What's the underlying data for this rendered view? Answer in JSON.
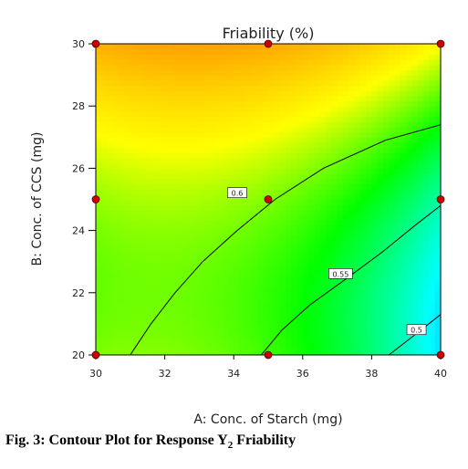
{
  "chart_data": {
    "type": "contour",
    "title": "Friability (%)",
    "xlabel": "A: Conc. of Starch (mg)",
    "ylabel": "B: Conc. of CCS (mg)",
    "xlim": [
      30,
      40
    ],
    "ylim": [
      20,
      30
    ],
    "x_ticks": [
      30,
      32,
      34,
      36,
      38,
      40
    ],
    "y_ticks": [
      20,
      22,
      24,
      26,
      28,
      30
    ],
    "x_tick_labels": [
      "30",
      "32",
      "34",
      "36",
      "38",
      "40"
    ],
    "y_tick_labels": [
      "20",
      "22",
      "24",
      "26",
      "28",
      "30"
    ],
    "grid": false,
    "colormap": [
      "#0000ff",
      "#00ffff",
      "#00ff00",
      "#ffff00",
      "#ffaa00",
      "#ff6600"
    ],
    "contour_lines": [
      {
        "level": 0.6,
        "label": "0.6",
        "label_at": [
          34.1,
          25.2
        ],
        "points": [
          [
            31.0,
            20
          ],
          [
            31.6,
            21
          ],
          [
            32.3,
            22
          ],
          [
            33.1,
            23
          ],
          [
            34.1,
            24
          ],
          [
            35.2,
            25
          ],
          [
            36.6,
            26
          ],
          [
            38.4,
            26.9
          ],
          [
            40,
            27.4
          ]
        ]
      },
      {
        "level": 0.55,
        "label": "0.55",
        "label_at": [
          37.1,
          22.6
        ],
        "points": [
          [
            34.8,
            20
          ],
          [
            35.4,
            20.8
          ],
          [
            36.2,
            21.6
          ],
          [
            37.2,
            22.4
          ],
          [
            38.3,
            23.3
          ],
          [
            39.3,
            24.2
          ],
          [
            40,
            24.8
          ]
        ]
      },
      {
        "level": 0.5,
        "label": "0.5",
        "label_at": [
          39.3,
          20.8
        ],
        "points": [
          [
            38.5,
            20
          ],
          [
            39.2,
            20.6
          ],
          [
            40,
            21.3
          ]
        ]
      }
    ],
    "design_points": [
      [
        30,
        20
      ],
      [
        30,
        25
      ],
      [
        30,
        30
      ],
      [
        35,
        20
      ],
      [
        35,
        25
      ],
      [
        35,
        30
      ],
      [
        40,
        20
      ],
      [
        40,
        25
      ],
      [
        40,
        30
      ]
    ],
    "point_color": "#cc0000"
  },
  "caption": {
    "prefix": "Fig.  3: Contour Plot for Response Y",
    "subscript": "2",
    "suffix": " Friability"
  }
}
